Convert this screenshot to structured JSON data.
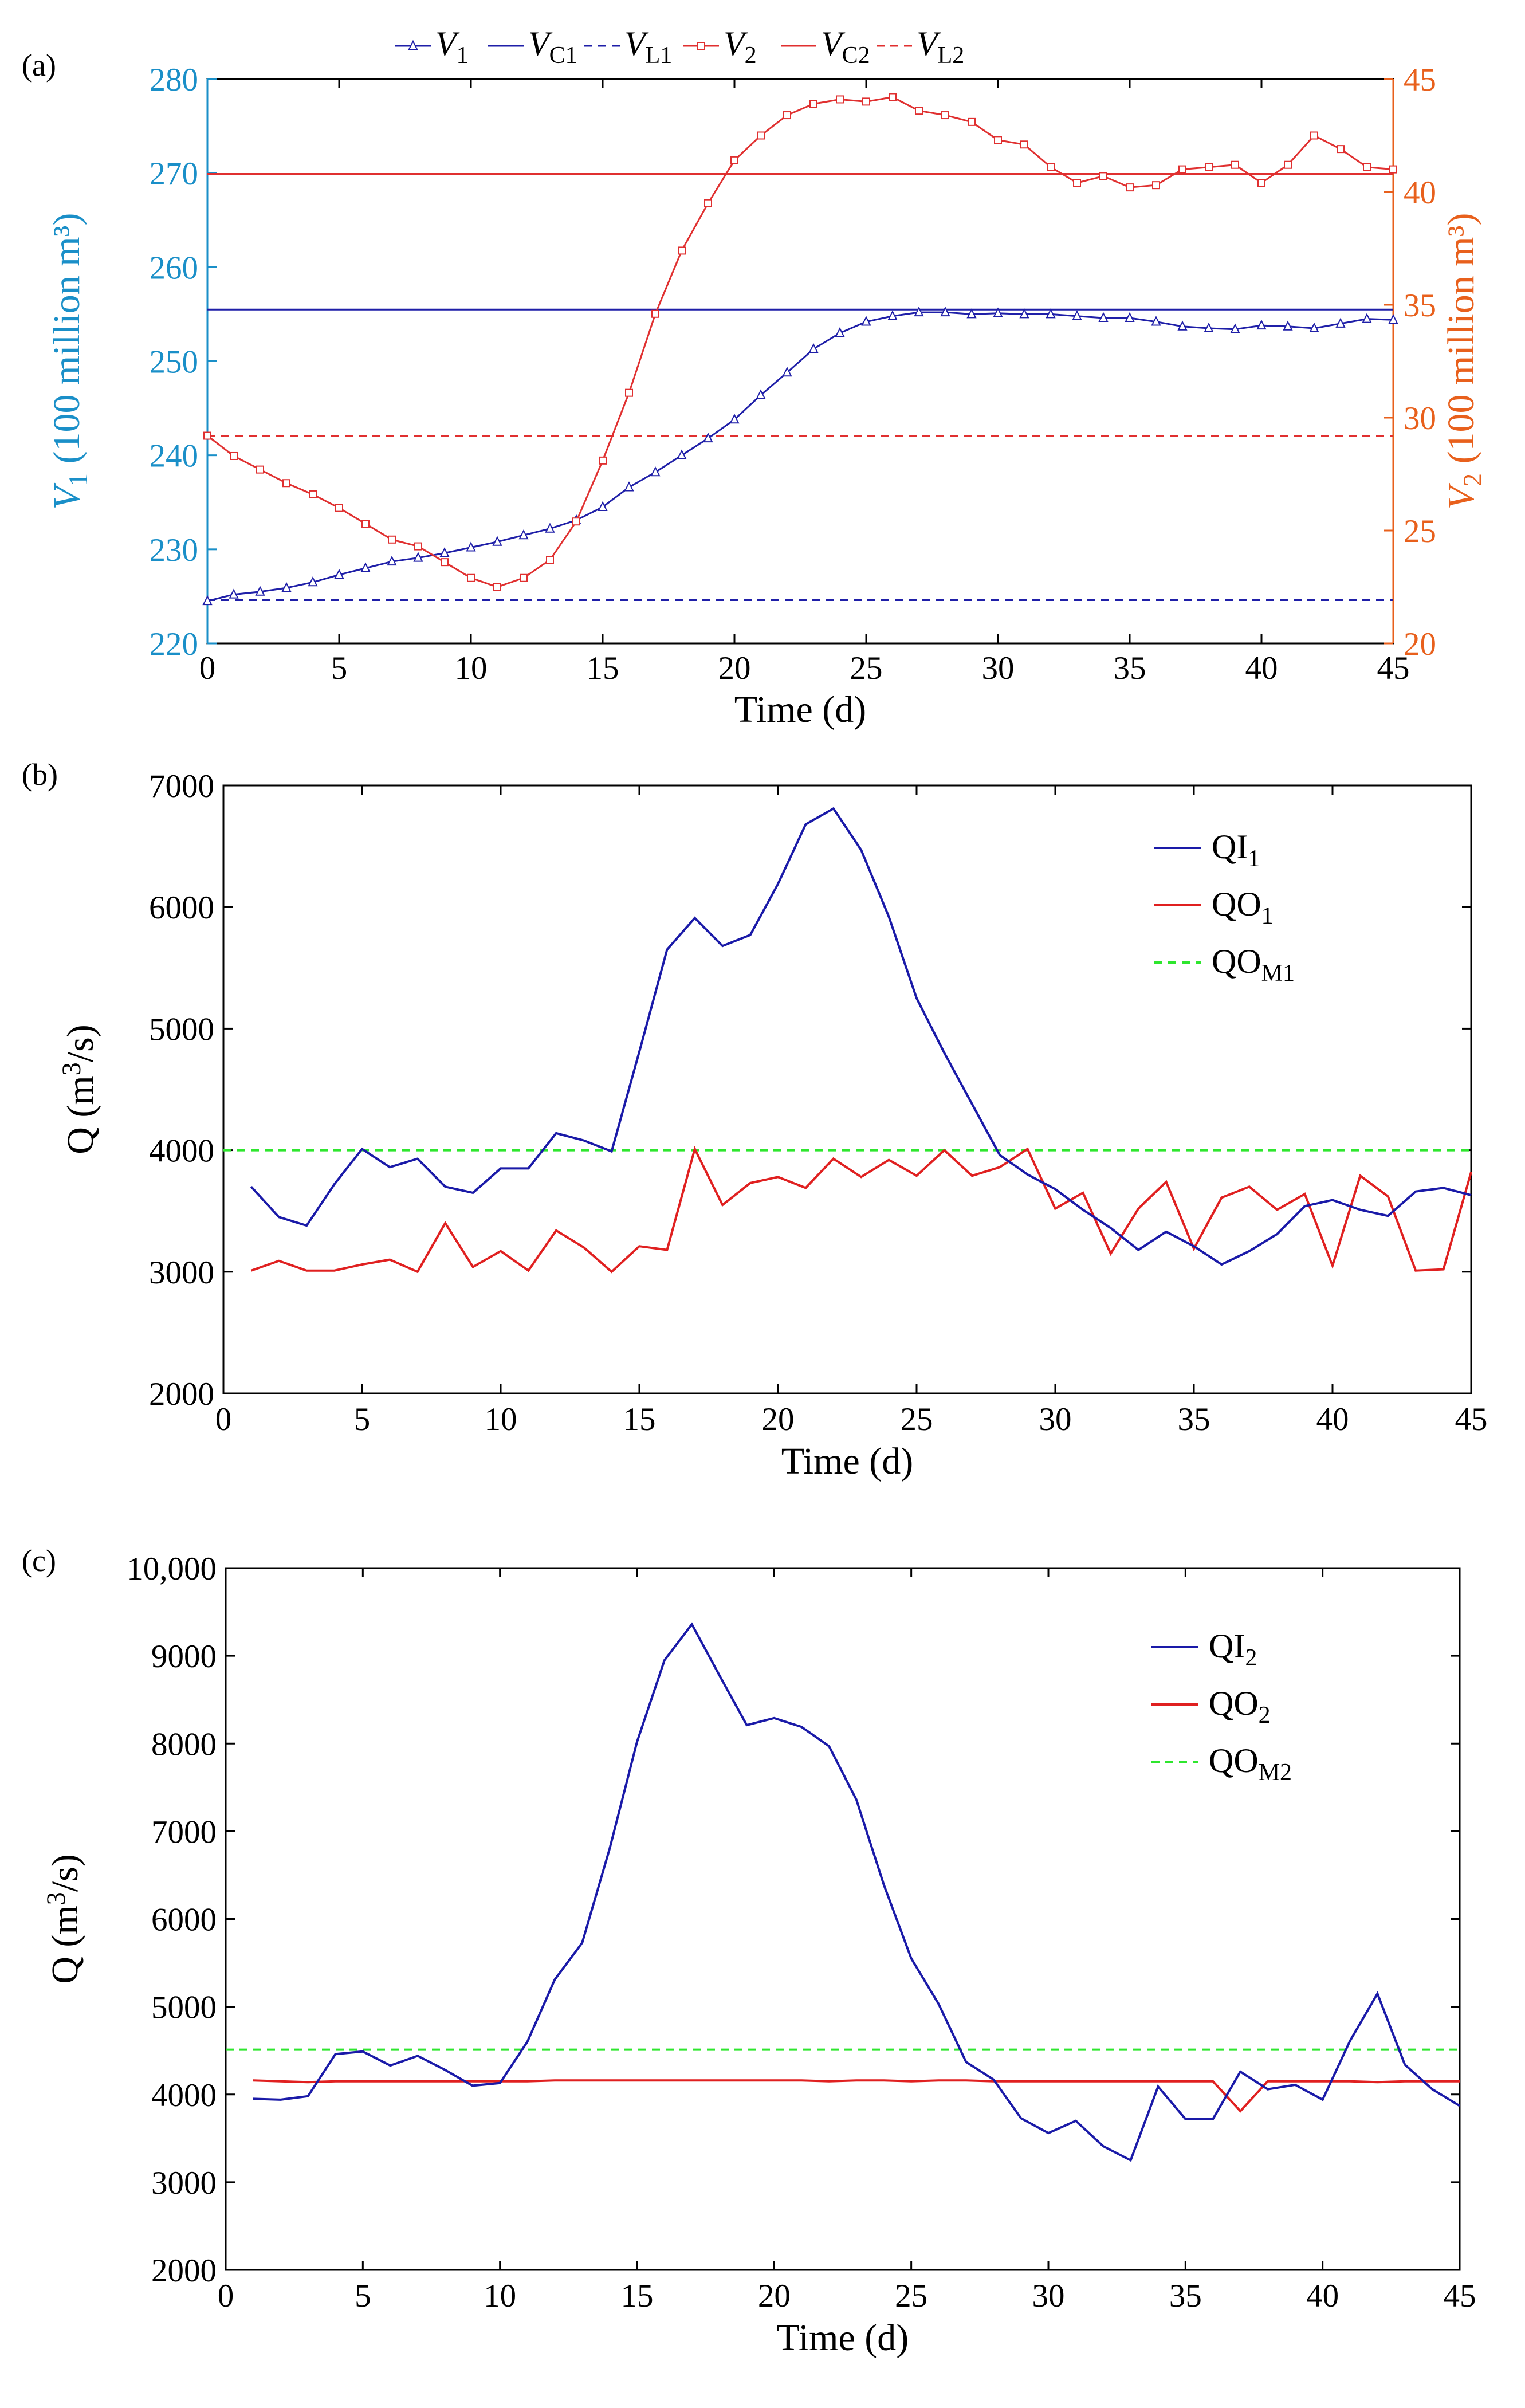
{
  "chart_data": [
    {
      "panel": "(a)",
      "type": "line",
      "xlabel": "Time (d)",
      "xlim": [
        0,
        45
      ],
      "xticks": [
        0,
        5,
        10,
        15,
        20,
        25,
        30,
        35,
        40,
        45
      ],
      "ylabel_left": {
        "main": "V",
        "sub": "1",
        "rest": " (100 million m³)"
      },
      "ylim_left": [
        220,
        280
      ],
      "yticks_left": [
        220,
        230,
        240,
        250,
        260,
        270,
        280
      ],
      "ylabel_right": {
        "main": "V",
        "sub": "2",
        "rest": " (100 million m³)"
      },
      "ylim_right": [
        20,
        45
      ],
      "yticks_right": [
        20,
        25,
        30,
        35,
        40,
        45
      ],
      "legend": [
        {
          "main": "V",
          "sub": "1"
        },
        {
          "main": "V",
          "sub": "C1"
        },
        {
          "main": "V",
          "sub": "L1"
        },
        {
          "main": "V",
          "sub": "2"
        },
        {
          "main": "V",
          "sub": "C2"
        },
        {
          "main": "V",
          "sub": "L2"
        }
      ],
      "colors": {
        "blue": "#1f1fa8",
        "red": "#e03030",
        "left_axis": "#1a8fc8",
        "right_axis": "#e8601c"
      },
      "series": [
        {
          "name": "V1",
          "axis": "left",
          "x": [
            0,
            1,
            2,
            3,
            4,
            5,
            6,
            7,
            8,
            9,
            10,
            11,
            12,
            13,
            14,
            15,
            16,
            17,
            18,
            19,
            20,
            21,
            22,
            23,
            24,
            25,
            26,
            27,
            28,
            29,
            30,
            31,
            32,
            33,
            34,
            35,
            36,
            37,
            38,
            39,
            40,
            41,
            42,
            43,
            44,
            45
          ],
          "values": [
            224.5,
            225.2,
            225.5,
            225.9,
            226.5,
            227.3,
            228,
            228.7,
            229.1,
            229.6,
            230.2,
            230.8,
            231.5,
            232.2,
            233.1,
            234.5,
            236.6,
            238.2,
            240,
            241.8,
            243.8,
            246.4,
            248.8,
            251.3,
            253,
            254.2,
            254.8,
            255.2,
            255.2,
            255,
            255.1,
            255,
            255,
            254.8,
            254.6,
            254.6,
            254.2,
            253.7,
            253.5,
            253.4,
            253.8,
            253.7,
            253.5,
            254,
            254.5,
            254.4
          ]
        },
        {
          "name": "VC1",
          "axis": "left",
          "constant": 255.5
        },
        {
          "name": "VL1",
          "axis": "left",
          "constant": 224.6
        },
        {
          "name": "V2",
          "axis": "right",
          "x": [
            0,
            1,
            2,
            3,
            4,
            5,
            6,
            7,
            8,
            9,
            10,
            11,
            12,
            13,
            14,
            15,
            16,
            17,
            18,
            19,
            20,
            21,
            22,
            23,
            24,
            25,
            26,
            27,
            28,
            29,
            30,
            31,
            32,
            33,
            34,
            35,
            36,
            37,
            38,
            39,
            40,
            41,
            42,
            43,
            44,
            45
          ],
          "values": [
            29.2,
            28.3,
            27.7,
            27.1,
            26.6,
            26,
            25.3,
            24.6,
            24.3,
            23.6,
            22.9,
            22.5,
            22.9,
            23.7,
            25.4,
            28.1,
            31.1,
            34.6,
            37.4,
            39.5,
            41.4,
            42.5,
            43.4,
            43.9,
            44.1,
            44,
            44.2,
            43.6,
            43.4,
            43.1,
            42.3,
            42.1,
            41.1,
            40.4,
            40.7,
            40.2,
            40.3,
            41,
            41.1,
            41.2,
            40.4,
            41.2,
            42.5,
            41.9,
            41.1,
            41
          ]
        },
        {
          "name": "VC2",
          "axis": "right",
          "constant": 40.8
        },
        {
          "name": "VL2",
          "axis": "right",
          "constant": 29.2
        }
      ]
    },
    {
      "panel": "(b)",
      "type": "line",
      "xlabel": "Time (d)",
      "ylabel": {
        "main": "Q (m",
        "sup": "3",
        "rest": "/s)"
      },
      "xlim": [
        0,
        45
      ],
      "xticks": [
        0,
        5,
        10,
        15,
        20,
        25,
        30,
        35,
        40,
        45
      ],
      "ylim": [
        2000,
        7000
      ],
      "yticks": [
        2000,
        3000,
        4000,
        5000,
        6000,
        7000
      ],
      "legend": [
        {
          "main": "QI",
          "sub": "1"
        },
        {
          "main": "QO",
          "sub": "1"
        },
        {
          "main": "QO",
          "sub": "M1"
        }
      ],
      "colors": {
        "QI": "#1a1aa8",
        "QO": "#e02020",
        "QOM": "#2ee62e"
      },
      "series": [
        {
          "name": "QI1",
          "x": [
            1,
            2,
            3,
            4,
            5,
            6,
            7,
            8,
            9,
            10,
            11,
            12,
            13,
            14,
            15,
            16,
            17,
            18,
            19,
            20,
            21,
            22,
            23,
            24,
            25,
            26,
            27,
            28,
            29,
            30,
            31,
            32,
            33,
            34,
            35,
            36,
            37,
            38,
            39,
            40,
            41,
            42,
            43,
            44,
            45
          ],
          "values": [
            3700,
            3450,
            3380,
            3720,
            4010,
            3860,
            3930,
            3700,
            3650,
            3850,
            3850,
            4140,
            4080,
            3990,
            4810,
            5650,
            5910,
            5680,
            5770,
            6190,
            6680,
            6810,
            6470,
            5920,
            5250,
            4800,
            4380,
            3960,
            3800,
            3680,
            3510,
            3360,
            3180,
            3330,
            3210,
            3060,
            3170,
            3310,
            3540,
            3590,
            3510,
            3460,
            3660,
            3690,
            3630
          ]
        },
        {
          "name": "QO1",
          "x": [
            1,
            2,
            3,
            4,
            5,
            6,
            7,
            8,
            9,
            10,
            11,
            12,
            13,
            14,
            15,
            16,
            17,
            18,
            19,
            20,
            21,
            22,
            23,
            24,
            25,
            26,
            27,
            28,
            29,
            30,
            31,
            32,
            33,
            34,
            35,
            36,
            37,
            38,
            39,
            40,
            41,
            42,
            43,
            44,
            45
          ],
          "values": [
            3010,
            3090,
            3010,
            3010,
            3060,
            3100,
            3000,
            3400,
            3040,
            3170,
            3010,
            3340,
            3200,
            3000,
            3210,
            3180,
            4010,
            3550,
            3730,
            3780,
            3690,
            3930,
            3780,
            3920,
            3790,
            4000,
            3790,
            3860,
            4010,
            3520,
            3650,
            3150,
            3520,
            3740,
            3190,
            3610,
            3700,
            3510,
            3640,
            3050,
            3790,
            3620,
            3010,
            3020,
            3820
          ]
        },
        {
          "name": "QOM1",
          "constant": 4000
        }
      ]
    },
    {
      "panel": "(c)",
      "type": "line",
      "xlabel": "Time (d)",
      "ylabel": {
        "main": "Q (m",
        "sup": "3",
        "rest": "/s)"
      },
      "xlim": [
        0,
        45
      ],
      "xticks": [
        0,
        5,
        10,
        15,
        20,
        25,
        30,
        35,
        40,
        45
      ],
      "ylim": [
        2000,
        10000
      ],
      "yticks": [
        2000,
        3000,
        4000,
        5000,
        6000,
        7000,
        8000,
        9000,
        10000
      ],
      "ytick_labels": [
        "2000",
        "3000",
        "4000",
        "5000",
        "6000",
        "7000",
        "8000",
        "9000",
        "10,000"
      ],
      "legend": [
        {
          "main": "QI",
          "sub": "2"
        },
        {
          "main": "QO",
          "sub": "2"
        },
        {
          "main": "QO",
          "sub": "M2"
        }
      ],
      "colors": {
        "QI": "#1a1aa8",
        "QO": "#e02020",
        "QOM": "#2ee62e"
      },
      "series": [
        {
          "name": "QI2",
          "x": [
            1,
            2,
            3,
            4,
            5,
            6,
            7,
            8,
            9,
            10,
            11,
            12,
            13,
            14,
            15,
            16,
            17,
            18,
            19,
            20,
            21,
            22,
            23,
            24,
            25,
            26,
            27,
            28,
            29,
            30,
            31,
            32,
            33,
            34,
            35,
            36,
            37,
            38,
            39,
            40,
            41,
            42,
            43,
            44,
            45
          ],
          "values": [
            3950,
            3940,
            3980,
            4460,
            4490,
            4330,
            4440,
            4280,
            4100,
            4130,
            4600,
            5310,
            5730,
            6800,
            8020,
            8950,
            9360,
            8780,
            8210,
            8290,
            8190,
            7970,
            7360,
            6390,
            5550,
            5030,
            4370,
            4170,
            3730,
            3560,
            3700,
            3410,
            3250,
            4090,
            3720,
            3720,
            4260,
            4060,
            4110,
            3940,
            4610,
            5150,
            4340,
            4060,
            3870
          ]
        },
        {
          "name": "QO2",
          "x": [
            1,
            2,
            3,
            4,
            5,
            6,
            7,
            8,
            9,
            10,
            11,
            12,
            13,
            14,
            15,
            16,
            17,
            18,
            19,
            20,
            21,
            22,
            23,
            24,
            25,
            26,
            27,
            28,
            29,
            30,
            31,
            32,
            33,
            34,
            35,
            36,
            37,
            38,
            39,
            40,
            41,
            42,
            43,
            44,
            45
          ],
          "values": [
            4160,
            4150,
            4140,
            4150,
            4150,
            4150,
            4150,
            4150,
            4150,
            4150,
            4150,
            4160,
            4160,
            4160,
            4160,
            4160,
            4160,
            4160,
            4160,
            4160,
            4160,
            4150,
            4160,
            4160,
            4150,
            4160,
            4160,
            4150,
            4150,
            4150,
            4150,
            4150,
            4150,
            4150,
            4150,
            4150,
            3810,
            4150,
            4150,
            4150,
            4150,
            4140,
            4150,
            4150,
            4150
          ]
        },
        {
          "name": "QOM2",
          "constant": 4510
        }
      ]
    }
  ]
}
